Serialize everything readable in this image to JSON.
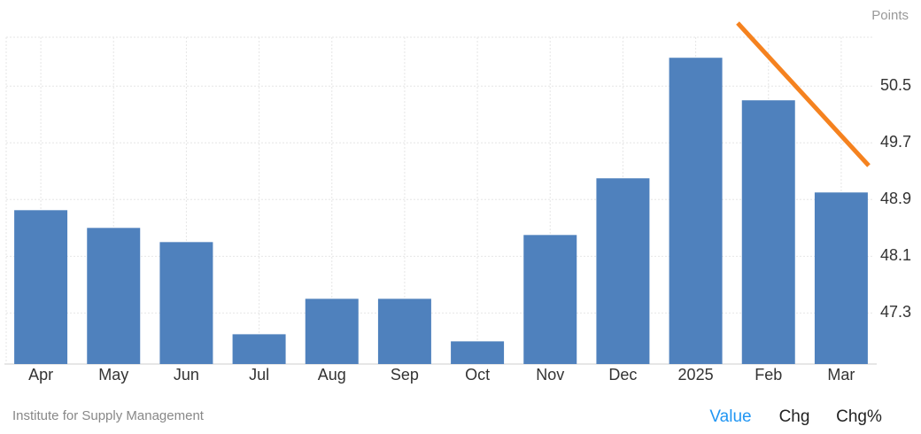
{
  "chart_data": {
    "type": "bar",
    "unit_label": "Points",
    "categories": [
      "Apr",
      "May",
      "Jun",
      "Jul",
      "Aug",
      "Sep",
      "Oct",
      "Nov",
      "Dec",
      "2025",
      "Feb",
      "Mar"
    ],
    "values": [
      48.75,
      48.5,
      48.3,
      47.0,
      47.5,
      47.5,
      46.9,
      48.4,
      49.2,
      50.9,
      50.3,
      49.0
    ],
    "color": "#4f81bd",
    "ylim": [
      46.58,
      51.19
    ],
    "yticks": [
      47.3,
      48.1,
      48.9,
      49.7,
      50.5
    ],
    "grid": true,
    "source": "Institute for Supply Management",
    "tabs": [
      "Value",
      "Chg",
      "Chg%"
    ]
  }
}
